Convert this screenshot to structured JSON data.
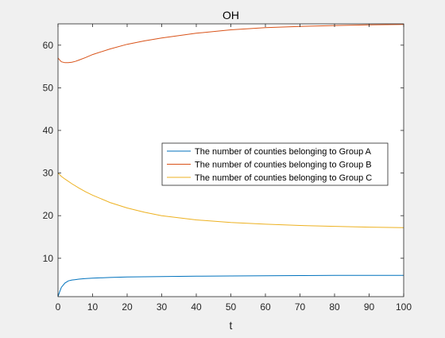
{
  "chart_data": {
    "type": "line",
    "title": "OH",
    "xlabel": "t",
    "ylabel": "",
    "xlim": [
      0,
      100
    ],
    "ylim": [
      1,
      65
    ],
    "xticks": [
      0,
      10,
      20,
      30,
      40,
      50,
      60,
      70,
      80,
      90,
      100
    ],
    "yticks": [
      10,
      20,
      30,
      40,
      50,
      60
    ],
    "grid": false,
    "legend_position": "right",
    "series": [
      {
        "name": "The number of counties belonging to Group A",
        "color": "#0072BD",
        "x": [
          0,
          0.5,
          1,
          2,
          3,
          4,
          5,
          6,
          8,
          10,
          15,
          20,
          30,
          40,
          50,
          60,
          70,
          80,
          90,
          100
        ],
        "y": [
          1,
          2.2,
          3.2,
          4.2,
          4.7,
          4.9,
          5.0,
          5.1,
          5.25,
          5.35,
          5.5,
          5.6,
          5.7,
          5.8,
          5.85,
          5.9,
          5.95,
          6.0,
          6.0,
          6.0
        ]
      },
      {
        "name": "The number of counties belonging to Group B",
        "color": "#D95319",
        "x": [
          0,
          0.5,
          1,
          2,
          3,
          4,
          5,
          6,
          8,
          10,
          15,
          20,
          25,
          30,
          40,
          50,
          60,
          70,
          80,
          90,
          100
        ],
        "y": [
          57,
          56.5,
          56.1,
          55.9,
          55.9,
          56.0,
          56.2,
          56.5,
          57.1,
          57.8,
          59.1,
          60.2,
          61.0,
          61.7,
          62.8,
          63.6,
          64.1,
          64.4,
          64.6,
          64.75,
          64.85
        ]
      },
      {
        "name": "The number of counties belonging to Group C",
        "color": "#EDB120",
        "x": [
          0,
          0.5,
          1,
          2,
          4,
          6,
          8,
          10,
          15,
          20,
          25,
          30,
          40,
          50,
          60,
          70,
          80,
          90,
          100
        ],
        "y": [
          30,
          29.6,
          29.2,
          28.6,
          27.5,
          26.5,
          25.6,
          24.8,
          23.1,
          21.8,
          20.8,
          20.0,
          19.0,
          18.4,
          18.0,
          17.7,
          17.5,
          17.3,
          17.2
        ]
      }
    ]
  }
}
